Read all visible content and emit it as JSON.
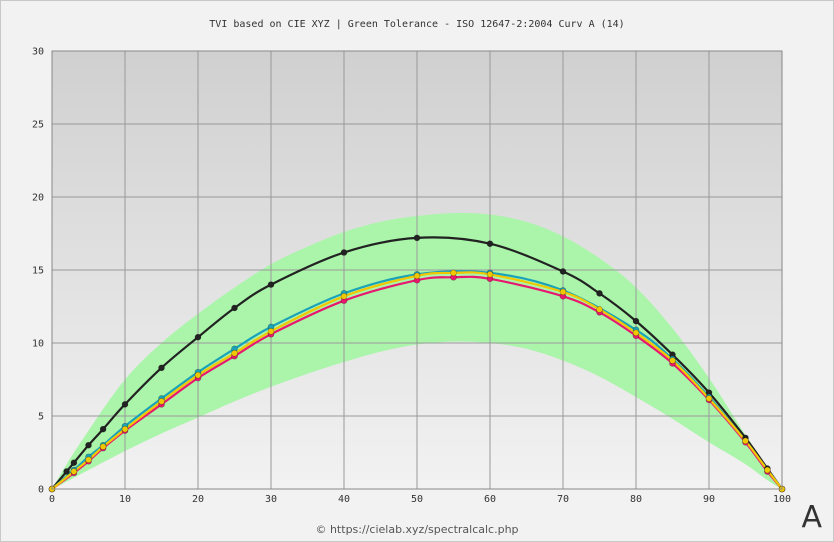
{
  "chart_data": {
    "type": "line",
    "title": "TVI based on CIE XYZ  |  Green Tolerance - ISO 12647-2:2004 Curv A (14)",
    "xlabel": "",
    "ylabel": "",
    "xlim": [
      0,
      100
    ],
    "ylim": [
      0,
      30
    ],
    "x_ticks": [
      0,
      10,
      20,
      30,
      40,
      50,
      60,
      70,
      80,
      90,
      100
    ],
    "y_ticks": [
      0,
      5,
      10,
      15,
      20,
      25,
      30
    ],
    "grid": true,
    "tolerance_band": {
      "color": "#aaf5aa",
      "x": [
        0,
        2,
        5,
        10,
        15,
        20,
        25,
        30,
        35,
        40,
        45,
        50,
        55,
        60,
        65,
        70,
        75,
        80,
        85,
        90,
        95,
        98,
        100
      ],
      "upper": [
        0,
        1.7,
        4.0,
        7.5,
        10.0,
        12.0,
        13.8,
        15.4,
        16.6,
        17.6,
        18.3,
        18.7,
        18.9,
        18.8,
        18.3,
        17.3,
        15.8,
        13.8,
        11.0,
        7.6,
        3.7,
        1.5,
        0
      ],
      "lower": [
        0,
        0.5,
        1.3,
        2.6,
        3.8,
        4.9,
        6.0,
        7.0,
        7.9,
        8.7,
        9.4,
        9.9,
        10.1,
        10.0,
        9.6,
        8.8,
        7.7,
        6.3,
        4.8,
        3.2,
        1.7,
        0.6,
        0
      ]
    },
    "series": [
      {
        "color": "#222222",
        "x": [
          0,
          2,
          3,
          5,
          7,
          10,
          15,
          20,
          25,
          30,
          40,
          50,
          60,
          70,
          75,
          80,
          85,
          90,
          95,
          98,
          100
        ],
        "values": [
          0,
          1.2,
          1.8,
          3.0,
          4.1,
          5.8,
          8.3,
          10.4,
          12.4,
          14.0,
          16.2,
          17.2,
          16.8,
          14.9,
          13.4,
          11.5,
          9.2,
          6.6,
          3.5,
          1.4,
          0
        ]
      },
      {
        "color": "#1aa3b8",
        "x": [
          0,
          3,
          5,
          7,
          10,
          15,
          20,
          25,
          30,
          40,
          50,
          60,
          70,
          80,
          85,
          90,
          95,
          98,
          100
        ],
        "values": [
          0,
          1.3,
          2.2,
          3.0,
          4.3,
          6.2,
          8.0,
          9.6,
          11.1,
          13.4,
          14.7,
          14.8,
          13.6,
          10.9,
          8.9,
          6.3,
          3.3,
          1.3,
          0
        ]
      },
      {
        "color": "#e8186e",
        "x": [
          0,
          3,
          5,
          7,
          10,
          15,
          20,
          25,
          30,
          40,
          50,
          55,
          60,
          70,
          75,
          80,
          85,
          90,
          95,
          98,
          100
        ],
        "values": [
          0,
          1.1,
          1.9,
          2.8,
          4.0,
          5.8,
          7.6,
          9.1,
          10.6,
          12.9,
          14.3,
          14.5,
          14.4,
          13.2,
          12.1,
          10.5,
          8.6,
          6.1,
          3.2,
          1.2,
          0
        ]
      },
      {
        "color": "#f0c800",
        "x": [
          0,
          3,
          5,
          7,
          10,
          15,
          20,
          25,
          30,
          40,
          50,
          55,
          60,
          70,
          75,
          80,
          85,
          90,
          95,
          98,
          100
        ],
        "values": [
          0,
          1.2,
          2.0,
          2.9,
          4.1,
          6.0,
          7.8,
          9.3,
          10.8,
          13.2,
          14.6,
          14.8,
          14.7,
          13.5,
          12.3,
          10.7,
          8.8,
          6.2,
          3.3,
          1.3,
          0
        ]
      }
    ]
  },
  "footer": {
    "credit": "© https://cielab.xyz/spectralcalc.php",
    "corner_label": "A"
  }
}
